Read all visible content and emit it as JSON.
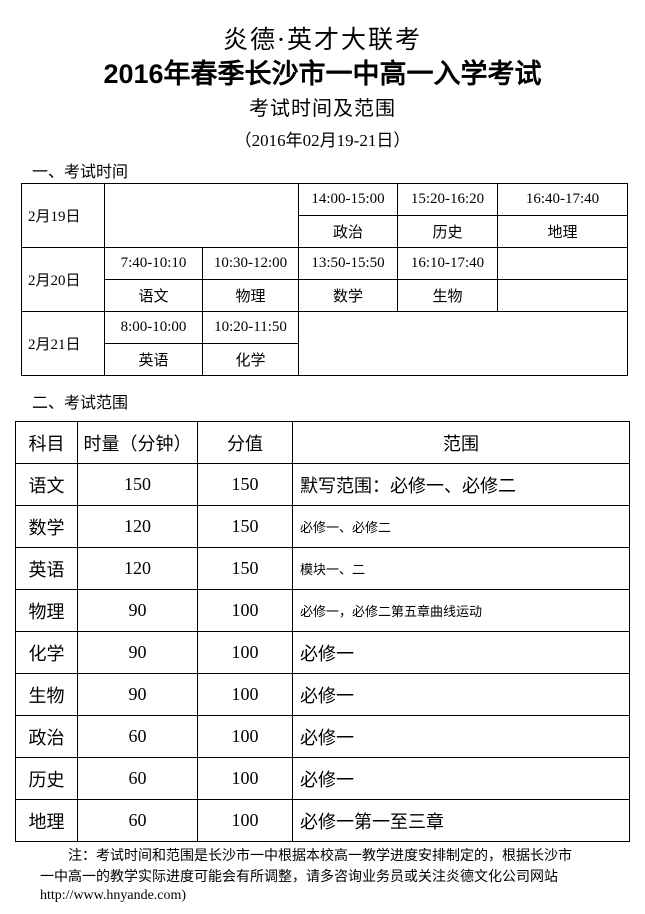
{
  "header": {
    "brand": "炎德·英才大联考",
    "title": "2016年春季长沙市一中高一入学考试",
    "subtitle": "考试时间及范围",
    "date_range": "（2016年02月19-21日）"
  },
  "section1": {
    "heading": "一、考试时间",
    "days": [
      {
        "date": "2月19日",
        "slots": [
          {
            "time": "14:00-15:00",
            "subject": "政治"
          },
          {
            "time": "15:20-16:20",
            "subject": "历史"
          },
          {
            "time": "16:40-17:40",
            "subject": "地理"
          }
        ]
      },
      {
        "date": "2月20日",
        "slots": [
          {
            "time": "7:40-10:10",
            "subject": "语文"
          },
          {
            "time": "10:30-12:00",
            "subject": "物理"
          },
          {
            "time": "13:50-15:50",
            "subject": "数学"
          },
          {
            "time": "16:10-17:40",
            "subject": "生物"
          }
        ]
      },
      {
        "date": "2月21日",
        "slots": [
          {
            "time": "8:00-10:00",
            "subject": "英语"
          },
          {
            "time": "10:20-11:50",
            "subject": "化学"
          }
        ]
      }
    ]
  },
  "section2": {
    "heading": "二、考试范围",
    "columns": [
      "科目",
      "时量（分钟）",
      "分值",
      "范围"
    ],
    "rows": [
      {
        "subject": "语文",
        "minutes": "150",
        "score": "150",
        "scope": "默写范围：必修一、必修二",
        "small": false
      },
      {
        "subject": "数学",
        "minutes": "120",
        "score": "150",
        "scope": "必修一、必修二",
        "small": true
      },
      {
        "subject": "英语",
        "minutes": "120",
        "score": "150",
        "scope": "模块一、二",
        "small": true
      },
      {
        "subject": "物理",
        "minutes": "90",
        "score": "100",
        "scope": "必修一，必修二第五章曲线运动",
        "small": true
      },
      {
        "subject": "化学",
        "minutes": "90",
        "score": "100",
        "scope": "必修一",
        "small": false
      },
      {
        "subject": "生物",
        "minutes": "90",
        "score": "100",
        "scope": "必修一",
        "small": false
      },
      {
        "subject": "政治",
        "minutes": "60",
        "score": "100",
        "scope": "必修一",
        "small": false
      },
      {
        "subject": "历史",
        "minutes": "60",
        "score": "100",
        "scope": "必修一",
        "small": false
      },
      {
        "subject": "地理",
        "minutes": "60",
        "score": "100",
        "scope": "必修一第一至三章",
        "small": false
      }
    ]
  },
  "note": {
    "line1": "注：考试时间和范围是长沙市一中根据本校高一教学进度安排制定的，根据长沙市",
    "line2": "一中高一的教学实际进度可能会有所调整，请多咨询业务员或关注炎德文化公司网站",
    "url": "http://www.hnyande.com)"
  }
}
